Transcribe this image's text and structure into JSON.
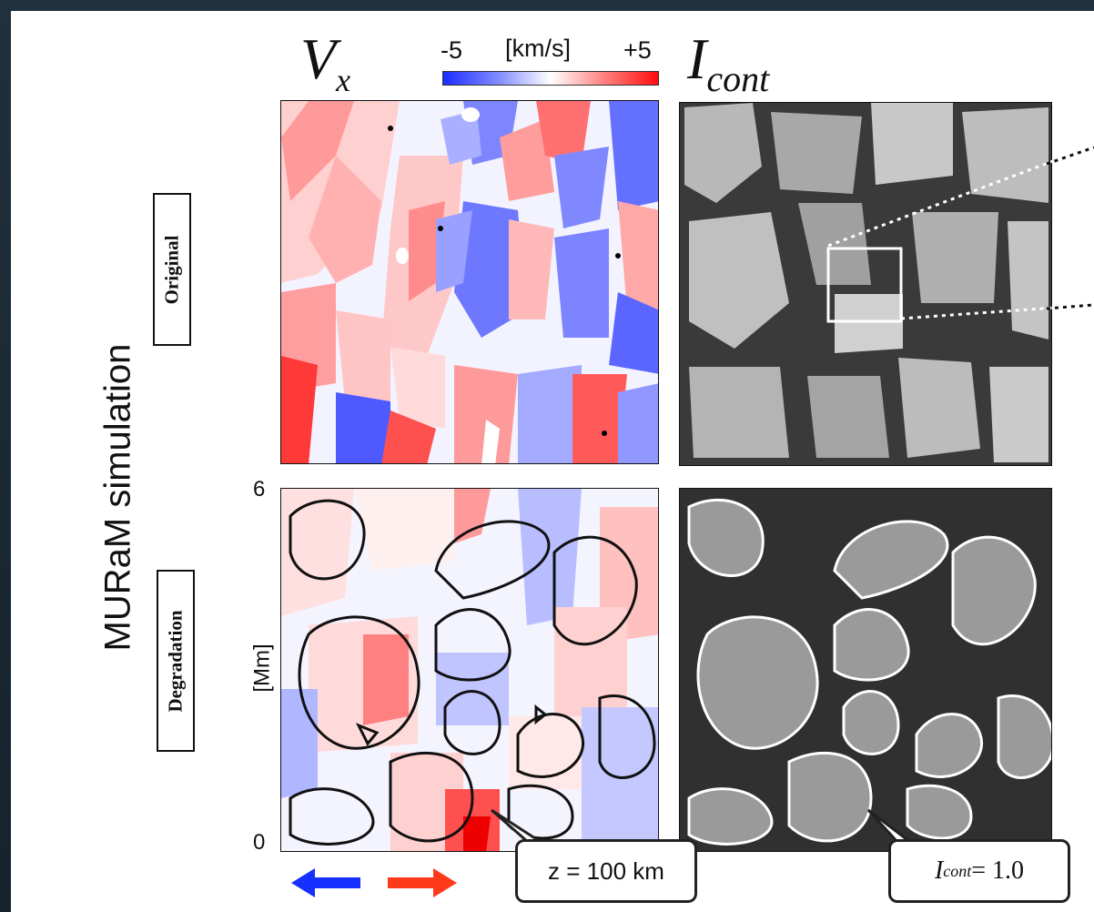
{
  "figure": {
    "side_title": "MURaM simulation",
    "row_labels": [
      "Original",
      "Degradation"
    ],
    "vx_symbol": "V",
    "vx_subscript": "x",
    "icont_symbol": "I",
    "icont_subscript": "cont",
    "colorbar": {
      "min_label": "-5",
      "unit_label": "[km/s]",
      "max_label": "+5"
    },
    "y_axis": {
      "top_tick": "6",
      "bottom_tick": "0",
      "label": "[Mm]"
    },
    "callouts": {
      "height": "z = 100 km",
      "contour_symbol": "I",
      "contour_subscript": "cont",
      "contour_value": " = 1.0"
    },
    "arrow_colors": {
      "left": "#1530ff",
      "right": "#ff3a1a"
    },
    "colors": {
      "blue": "#1e3cff",
      "red": "#ff1a1a",
      "background": "#1a2530"
    }
  }
}
